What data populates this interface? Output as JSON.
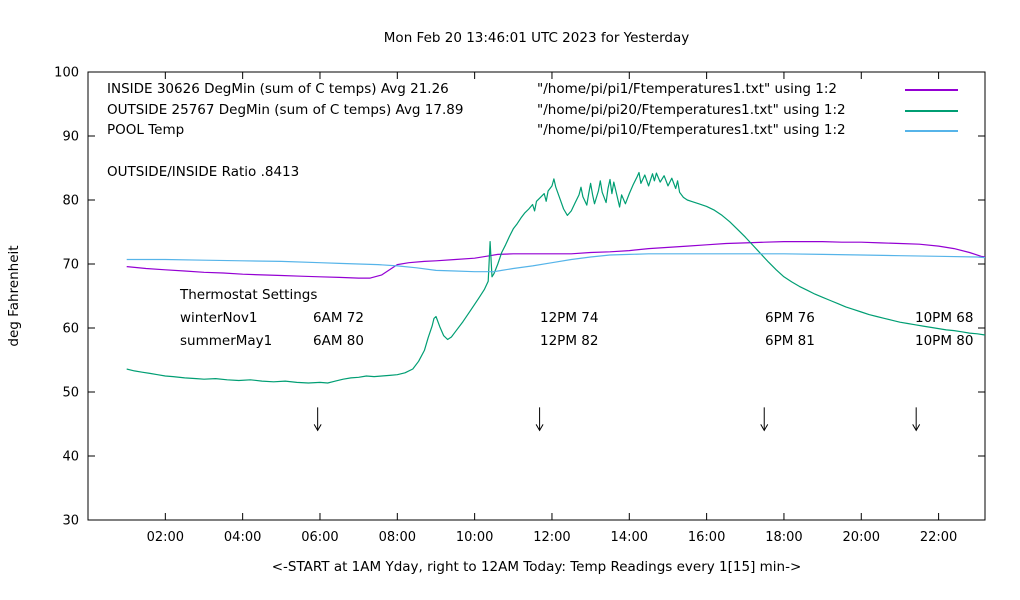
{
  "header": {
    "title": "Mon Feb 20 13:46:01 UTC 2023 for Yesterday"
  },
  "legend": {
    "rows": [
      {
        "label": "INSIDE 30626 DegMin (sum of C temps) Avg 21.26",
        "file": "\"/home/pi/pi1/Ftemperatures1.txt\" using 1:2",
        "color": "#9400d3"
      },
      {
        "label": "OUTSIDE 25767 DegMin (sum of C temps) Avg 17.89",
        "file": "\"/home/pi/pi20/Ftemperatures1.txt\" using 1:2",
        "color": "#009e73"
      },
      {
        "label": "POOL Temp",
        "file": "\"/home/pi/pi10/Ftemperatures1.txt\" using 1:2",
        "color": "#56b4e9"
      }
    ]
  },
  "ratio_text": "OUTSIDE/INSIDE Ratio .8413",
  "thermostat": {
    "heading": "Thermostat Settings",
    "rows": [
      {
        "name": "winterNov1",
        "c1": "6AM 72",
        "c2": "12PM 74",
        "c3": "6PM 76",
        "c4": "10PM 68"
      },
      {
        "name": "summerMay1",
        "c1": "6AM 80",
        "c2": "12PM 82",
        "c3": "6PM 81",
        "c4": "10PM 80"
      }
    ]
  },
  "chart_data": {
    "type": "line",
    "title": "Mon Feb 20 13:46:01 UTC 2023 for Yesterday",
    "xlabel": "<-START at 1AM Yday, right to 12AM Today:  Temp Readings every 1[15] min->",
    "ylabel": "deg Fahrenheit",
    "x_range": [
      0,
      23.2
    ],
    "y_range": [
      30,
      100
    ],
    "grid": false,
    "legend_position": "top-left-inside",
    "x_tick_values": [
      2,
      4,
      6,
      8,
      10,
      12,
      14,
      16,
      18,
      20,
      22
    ],
    "x_tick_labels": [
      "02:00",
      "04:00",
      "06:00",
      "08:00",
      "10:00",
      "12:00",
      "14:00",
      "16:00",
      "18:00",
      "20:00",
      "22:00"
    ],
    "y_tick_values": [
      30,
      40,
      50,
      60,
      70,
      80,
      90,
      100
    ],
    "y_tick_labels": [
      "30",
      "40",
      "50",
      "60",
      "70",
      "80",
      "90",
      "100"
    ],
    "arrows": {
      "color": "#000000",
      "y_from": 47.6,
      "y_to": 44.0,
      "x_positions": [
        5.94,
        11.68,
        17.49,
        21.42
      ]
    },
    "series": [
      {
        "name": "INSIDE",
        "color": "#9400d3",
        "points": [
          [
            1.0,
            69.6
          ],
          [
            1.5,
            69.3
          ],
          [
            2.0,
            69.1
          ],
          [
            2.5,
            68.9
          ],
          [
            3.0,
            68.7
          ],
          [
            3.5,
            68.6
          ],
          [
            4.0,
            68.4
          ],
          [
            4.5,
            68.3
          ],
          [
            5.0,
            68.2
          ],
          [
            5.5,
            68.1
          ],
          [
            6.0,
            68.0
          ],
          [
            6.5,
            67.9
          ],
          [
            7.0,
            67.8
          ],
          [
            7.3,
            67.8
          ],
          [
            7.6,
            68.3
          ],
          [
            8.0,
            69.9
          ],
          [
            8.3,
            70.2
          ],
          [
            8.7,
            70.4
          ],
          [
            9.0,
            70.5
          ],
          [
            9.5,
            70.7
          ],
          [
            10.0,
            70.9
          ],
          [
            10.3,
            71.2
          ],
          [
            10.6,
            71.5
          ],
          [
            11.0,
            71.6
          ],
          [
            11.5,
            71.6
          ],
          [
            12.0,
            71.6
          ],
          [
            12.5,
            71.6
          ],
          [
            13.0,
            71.8
          ],
          [
            13.5,
            71.9
          ],
          [
            14.0,
            72.1
          ],
          [
            14.5,
            72.4
          ],
          [
            15.0,
            72.6
          ],
          [
            15.5,
            72.8
          ],
          [
            16.0,
            73.0
          ],
          [
            16.5,
            73.2
          ],
          [
            17.0,
            73.3
          ],
          [
            17.5,
            73.4
          ],
          [
            18.0,
            73.5
          ],
          [
            18.5,
            73.5
          ],
          [
            19.0,
            73.5
          ],
          [
            19.5,
            73.4
          ],
          [
            20.0,
            73.4
          ],
          [
            20.5,
            73.3
          ],
          [
            21.0,
            73.2
          ],
          [
            21.5,
            73.1
          ],
          [
            22.0,
            72.8
          ],
          [
            22.4,
            72.4
          ],
          [
            22.8,
            71.8
          ],
          [
            23.1,
            71.2
          ],
          [
            23.2,
            71.1
          ]
        ]
      },
      {
        "name": "OUTSIDE",
        "color": "#009e73",
        "points": [
          [
            1.0,
            53.6
          ],
          [
            1.2,
            53.3
          ],
          [
            1.4,
            53.1
          ],
          [
            1.6,
            52.9
          ],
          [
            1.8,
            52.7
          ],
          [
            2.0,
            52.5
          ],
          [
            2.2,
            52.4
          ],
          [
            2.5,
            52.2
          ],
          [
            2.8,
            52.1
          ],
          [
            3.0,
            52.0
          ],
          [
            3.3,
            52.1
          ],
          [
            3.6,
            51.9
          ],
          [
            3.9,
            51.8
          ],
          [
            4.2,
            51.9
          ],
          [
            4.5,
            51.7
          ],
          [
            4.8,
            51.6
          ],
          [
            5.1,
            51.7
          ],
          [
            5.4,
            51.5
          ],
          [
            5.7,
            51.4
          ],
          [
            6.0,
            51.5
          ],
          [
            6.2,
            51.4
          ],
          [
            6.4,
            51.7
          ],
          [
            6.6,
            52.0
          ],
          [
            6.8,
            52.2
          ],
          [
            7.0,
            52.3
          ],
          [
            7.2,
            52.5
          ],
          [
            7.4,
            52.4
          ],
          [
            7.6,
            52.5
          ],
          [
            7.8,
            52.6
          ],
          [
            8.0,
            52.7
          ],
          [
            8.2,
            53.0
          ],
          [
            8.4,
            53.6
          ],
          [
            8.55,
            54.8
          ],
          [
            8.7,
            56.5
          ],
          [
            8.8,
            58.5
          ],
          [
            8.9,
            60.3
          ],
          [
            8.95,
            61.5
          ],
          [
            9.0,
            61.8
          ],
          [
            9.1,
            60.2
          ],
          [
            9.2,
            58.8
          ],
          [
            9.3,
            58.2
          ],
          [
            9.4,
            58.6
          ],
          [
            9.5,
            59.4
          ],
          [
            9.7,
            61.0
          ],
          [
            9.9,
            62.8
          ],
          [
            10.1,
            64.6
          ],
          [
            10.25,
            66.0
          ],
          [
            10.35,
            67.3
          ],
          [
            10.4,
            73.5
          ],
          [
            10.45,
            68.0
          ],
          [
            10.5,
            68.5
          ],
          [
            10.6,
            70.0
          ],
          [
            10.7,
            71.8
          ],
          [
            10.8,
            73.0
          ],
          [
            10.9,
            74.3
          ],
          [
            11.0,
            75.5
          ],
          [
            11.1,
            76.3
          ],
          [
            11.2,
            77.2
          ],
          [
            11.3,
            78.0
          ],
          [
            11.4,
            78.6
          ],
          [
            11.5,
            79.3
          ],
          [
            11.55,
            78.3
          ],
          [
            11.6,
            79.8
          ],
          [
            11.7,
            80.4
          ],
          [
            11.8,
            81.0
          ],
          [
            11.85,
            79.8
          ],
          [
            11.9,
            81.4
          ],
          [
            12.0,
            82.2
          ],
          [
            12.05,
            83.3
          ],
          [
            12.1,
            82.0
          ],
          [
            12.2,
            80.3
          ],
          [
            12.3,
            78.6
          ],
          [
            12.4,
            77.6
          ],
          [
            12.5,
            78.3
          ],
          [
            12.6,
            79.6
          ],
          [
            12.7,
            80.8
          ],
          [
            12.75,
            82.0
          ],
          [
            12.8,
            80.5
          ],
          [
            12.9,
            79.2
          ],
          [
            12.95,
            81.0
          ],
          [
            13.0,
            82.6
          ],
          [
            13.05,
            80.8
          ],
          [
            13.1,
            79.4
          ],
          [
            13.2,
            81.4
          ],
          [
            13.25,
            83.0
          ],
          [
            13.3,
            81.2
          ],
          [
            13.4,
            79.6
          ],
          [
            13.45,
            81.8
          ],
          [
            13.5,
            83.2
          ],
          [
            13.55,
            81.0
          ],
          [
            13.6,
            82.8
          ],
          [
            13.7,
            80.2
          ],
          [
            13.75,
            78.9
          ],
          [
            13.8,
            80.8
          ],
          [
            13.9,
            79.4
          ],
          [
            14.0,
            81.0
          ],
          [
            14.1,
            82.4
          ],
          [
            14.2,
            83.6
          ],
          [
            14.25,
            84.3
          ],
          [
            14.3,
            82.6
          ],
          [
            14.4,
            83.9
          ],
          [
            14.5,
            82.2
          ],
          [
            14.6,
            84.1
          ],
          [
            14.65,
            83.0
          ],
          [
            14.7,
            84.2
          ],
          [
            14.8,
            82.8
          ],
          [
            14.9,
            83.8
          ],
          [
            15.0,
            82.2
          ],
          [
            15.1,
            83.4
          ],
          [
            15.2,
            81.8
          ],
          [
            15.25,
            83.0
          ],
          [
            15.3,
            81.2
          ],
          [
            15.4,
            80.4
          ],
          [
            15.5,
            80.0
          ],
          [
            15.6,
            79.8
          ],
          [
            15.8,
            79.4
          ],
          [
            16.0,
            79.0
          ],
          [
            16.2,
            78.4
          ],
          [
            16.4,
            77.6
          ],
          [
            16.6,
            76.6
          ],
          [
            16.8,
            75.4
          ],
          [
            17.0,
            74.2
          ],
          [
            17.2,
            72.9
          ],
          [
            17.4,
            71.6
          ],
          [
            17.6,
            70.3
          ],
          [
            17.8,
            69.1
          ],
          [
            18.0,
            68.0
          ],
          [
            18.2,
            67.2
          ],
          [
            18.4,
            66.5
          ],
          [
            18.6,
            65.9
          ],
          [
            18.8,
            65.3
          ],
          [
            19.0,
            64.8
          ],
          [
            19.2,
            64.3
          ],
          [
            19.4,
            63.8
          ],
          [
            19.6,
            63.3
          ],
          [
            19.8,
            62.9
          ],
          [
            20.0,
            62.5
          ],
          [
            20.2,
            62.1
          ],
          [
            20.4,
            61.8
          ],
          [
            20.6,
            61.5
          ],
          [
            20.8,
            61.2
          ],
          [
            21.0,
            60.9
          ],
          [
            21.2,
            60.7
          ],
          [
            21.4,
            60.5
          ],
          [
            21.6,
            60.3
          ],
          [
            21.8,
            60.1
          ],
          [
            22.0,
            59.9
          ],
          [
            22.2,
            59.7
          ],
          [
            22.4,
            59.6
          ],
          [
            22.6,
            59.4
          ],
          [
            22.8,
            59.2
          ],
          [
            23.0,
            59.1
          ],
          [
            23.2,
            58.9
          ]
        ]
      },
      {
        "name": "POOL",
        "color": "#56b4e9",
        "points": [
          [
            1.0,
            70.7
          ],
          [
            2.0,
            70.7
          ],
          [
            3.0,
            70.6
          ],
          [
            4.0,
            70.5
          ],
          [
            5.0,
            70.4
          ],
          [
            6.0,
            70.2
          ],
          [
            6.5,
            70.1
          ],
          [
            7.0,
            70.0
          ],
          [
            7.5,
            69.9
          ],
          [
            8.0,
            69.7
          ],
          [
            8.5,
            69.4
          ],
          [
            9.0,
            69.0
          ],
          [
            9.5,
            68.9
          ],
          [
            10.0,
            68.8
          ],
          [
            10.5,
            68.8
          ],
          [
            10.7,
            69.0
          ],
          [
            11.0,
            69.3
          ],
          [
            11.5,
            69.7
          ],
          [
            12.0,
            70.2
          ],
          [
            12.5,
            70.7
          ],
          [
            13.0,
            71.1
          ],
          [
            13.5,
            71.4
          ],
          [
            14.0,
            71.5
          ],
          [
            14.5,
            71.6
          ],
          [
            15.0,
            71.6
          ],
          [
            16.0,
            71.6
          ],
          [
            17.0,
            71.6
          ],
          [
            18.0,
            71.6
          ],
          [
            19.0,
            71.5
          ],
          [
            20.0,
            71.4
          ],
          [
            21.0,
            71.3
          ],
          [
            22.0,
            71.2
          ],
          [
            23.0,
            71.1
          ],
          [
            23.2,
            71.0
          ]
        ]
      }
    ]
  }
}
